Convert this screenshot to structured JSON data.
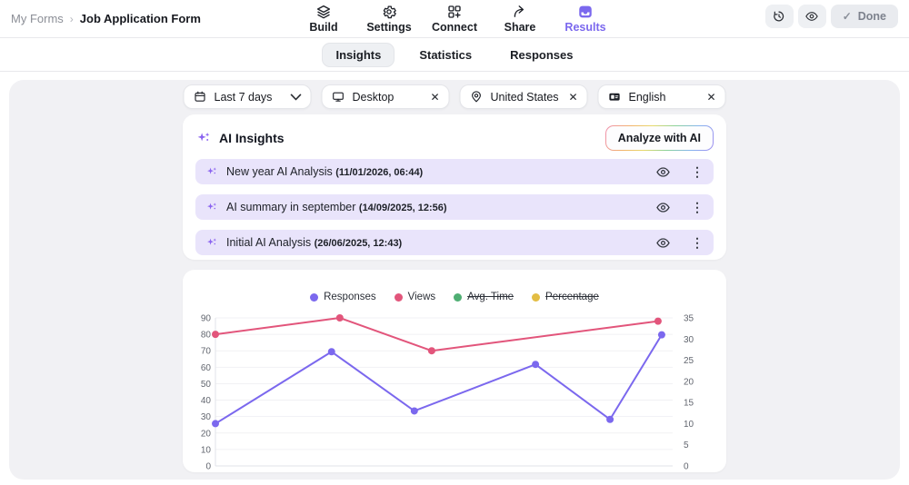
{
  "topbar": {
    "breadcrumb": {
      "parent": "My Forms",
      "separator": "›",
      "current": "Job Application Form"
    },
    "nav": [
      {
        "label": "Build",
        "icon": "layers-icon"
      },
      {
        "label": "Settings",
        "icon": "gear-icon"
      },
      {
        "label": "Connect",
        "icon": "grid-plus-icon"
      },
      {
        "label": "Share",
        "icon": "share-arrow-icon"
      },
      {
        "label": "Results",
        "icon": "inbox-icon",
        "active": true
      }
    ],
    "done_label": "Done"
  },
  "glyphs": {
    "breadcrumb_separator": "›",
    "done_check": "✓",
    "close": "✕",
    "kebab": "⋮"
  },
  "tabs": [
    {
      "label": "Insights",
      "active": true
    },
    {
      "label": "Statistics",
      "active": false
    },
    {
      "label": "Responses",
      "active": false
    }
  ],
  "filters": [
    {
      "label": "Last 7 days",
      "icon": "calendar-icon",
      "control": "chevron-down"
    },
    {
      "label": "Desktop",
      "icon": "monitor-icon",
      "control": "close"
    },
    {
      "label": "United States",
      "icon": "location-pin-icon",
      "control": "close"
    },
    {
      "label": "English",
      "icon": "language-card-icon",
      "control": "close"
    }
  ],
  "ai_insights": {
    "title": "AI Insights",
    "analyze_button_label": "Analyze with AI",
    "items": [
      {
        "title": "New year AI Analysis",
        "timestamp": "(11/01/2026, 06:44)"
      },
      {
        "title": "AI summary in september",
        "timestamp": "(14/09/2025, 12:56)"
      },
      {
        "title": "Initial AI Analysis",
        "timestamp": "(26/06/2025, 12:43)"
      }
    ]
  },
  "colors": {
    "accent_purple": "#7b68ee",
    "row_purple_bg": "#e9e4fb",
    "panel_bg": "#f1f1f4",
    "views_pink": "#e2557b",
    "avg_time_green": "#4fae73",
    "percentage_yellow": "#e3bd43"
  },
  "chart_data": {
    "type": "line",
    "title": "",
    "grid": true,
    "legend_position": "top-center",
    "x_axis": {
      "labels_visible": false
    },
    "left_axis": {
      "min": 0,
      "max": 90,
      "step": 10
    },
    "right_axis": {
      "min": 0,
      "max": 35,
      "step": 5
    },
    "legend": [
      {
        "name": "Responses",
        "color": "#7b68ee",
        "disabled": false
      },
      {
        "name": "Views",
        "color": "#e2557b",
        "disabled": false
      },
      {
        "name": "Avg. Time",
        "color": "#4fae73",
        "disabled": true
      },
      {
        "name": "Percentage",
        "color": "#e3bd43",
        "disabled": true
      }
    ],
    "series": [
      {
        "name": "Responses",
        "axis": "right",
        "color": "#7b68ee",
        "x_frac": [
          0,
          0.254,
          0.435,
          0.7,
          0.863,
          0.976
        ],
        "values": [
          10,
          27,
          13,
          24,
          11,
          31
        ]
      },
      {
        "name": "Views",
        "axis": "left",
        "color": "#e2557b",
        "x_frac": [
          0,
          0.272,
          0.473,
          0.968
        ],
        "values": [
          80,
          90,
          70,
          88
        ]
      }
    ]
  }
}
